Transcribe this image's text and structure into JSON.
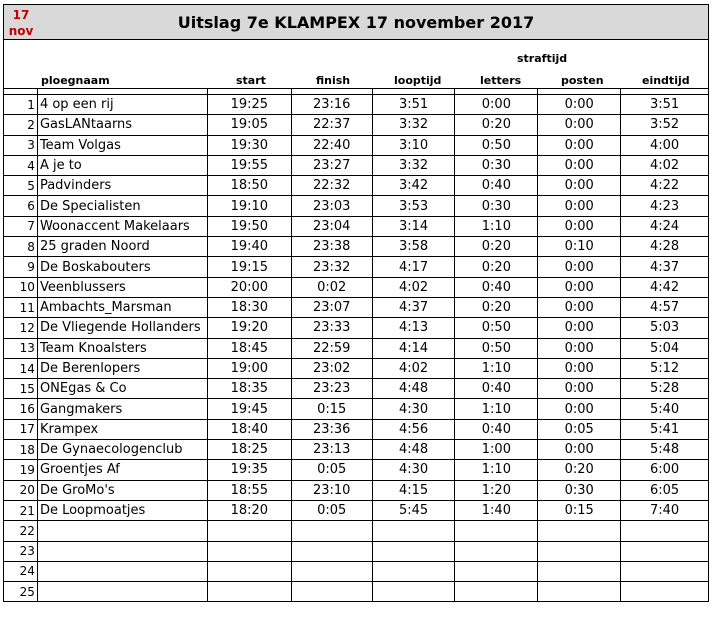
{
  "date_badge": {
    "day": "17",
    "month": "nov"
  },
  "title": "Uitslag 7e KLAMPEX  17 november 2017",
  "headers": {
    "team": "ploegnaam",
    "start": "start",
    "finish": "finish",
    "looptijd": "looptijd",
    "penalty_group": "straftijd",
    "letters": "letters",
    "posten": "posten",
    "eindtijd": "eindtijd"
  },
  "rows": [
    {
      "rank": "1",
      "team": "4 op een rij",
      "start": "19:25",
      "finish": "23:16",
      "looptijd": "3:51",
      "letters": "0:00",
      "posten": "0:00",
      "eindtijd": "3:51"
    },
    {
      "rank": "2",
      "team": "GasLANtaarns",
      "start": "19:05",
      "finish": "22:37",
      "looptijd": "3:32",
      "letters": "0:20",
      "posten": "0:00",
      "eindtijd": "3:52"
    },
    {
      "rank": "3",
      "team": "Team Volgas",
      "start": "19:30",
      "finish": "22:40",
      "looptijd": "3:10",
      "letters": "0:50",
      "posten": "0:00",
      "eindtijd": "4:00"
    },
    {
      "rank": "4",
      "team": "A je to",
      "start": "19:55",
      "finish": "23:27",
      "looptijd": "3:32",
      "letters": "0:30",
      "posten": "0:00",
      "eindtijd": "4:02"
    },
    {
      "rank": "5",
      "team": "Padvinders",
      "start": "18:50",
      "finish": "22:32",
      "looptijd": "3:42",
      "letters": "0:40",
      "posten": "0:00",
      "eindtijd": "4:22"
    },
    {
      "rank": "6",
      "team": "De Specialisten",
      "start": "19:10",
      "finish": "23:03",
      "looptijd": "3:53",
      "letters": "0:30",
      "posten": "0:00",
      "eindtijd": "4:23"
    },
    {
      "rank": "7",
      "team": "Woonaccent Makelaars",
      "start": "19:50",
      "finish": "23:04",
      "looptijd": "3:14",
      "letters": "1:10",
      "posten": "0:00",
      "eindtijd": "4:24"
    },
    {
      "rank": "8",
      "team": "25 graden Noord",
      "start": "19:40",
      "finish": "23:38",
      "looptijd": "3:58",
      "letters": "0:20",
      "posten": "0:10",
      "eindtijd": "4:28"
    },
    {
      "rank": "9",
      "team": "De Boskabouters",
      "start": "19:15",
      "finish": "23:32",
      "looptijd": "4:17",
      "letters": "0:20",
      "posten": "0:00",
      "eindtijd": "4:37"
    },
    {
      "rank": "10",
      "team": "Veenblussers",
      "start": "20:00",
      "finish": "0:02",
      "looptijd": "4:02",
      "letters": "0:40",
      "posten": "0:00",
      "eindtijd": "4:42"
    },
    {
      "rank": "11",
      "team": "Ambachts_Marsman",
      "start": "18:30",
      "finish": "23:07",
      "looptijd": "4:37",
      "letters": "0:20",
      "posten": "0:00",
      "eindtijd": "4:57"
    },
    {
      "rank": "12",
      "team": "De Vliegende Hollanders",
      "start": "19:20",
      "finish": "23:33",
      "looptijd": "4:13",
      "letters": "0:50",
      "posten": "0:00",
      "eindtijd": "5:03"
    },
    {
      "rank": "13",
      "team": "Team Knoalsters",
      "start": "18:45",
      "finish": "22:59",
      "looptijd": "4:14",
      "letters": "0:50",
      "posten": "0:00",
      "eindtijd": "5:04"
    },
    {
      "rank": "14",
      "team": "De Berenlopers",
      "start": "19:00",
      "finish": "23:02",
      "looptijd": "4:02",
      "letters": "1:10",
      "posten": "0:00",
      "eindtijd": "5:12"
    },
    {
      "rank": "15",
      "team": "ONEgas & Co",
      "start": "18:35",
      "finish": "23:23",
      "looptijd": "4:48",
      "letters": "0:40",
      "posten": "0:00",
      "eindtijd": "5:28"
    },
    {
      "rank": "16",
      "team": "Gangmakers",
      "start": "19:45",
      "finish": "0:15",
      "looptijd": "4:30",
      "letters": "1:10",
      "posten": "0:00",
      "eindtijd": "5:40"
    },
    {
      "rank": "17",
      "team": "Krampex",
      "start": "18:40",
      "finish": "23:36",
      "looptijd": "4:56",
      "letters": "0:40",
      "posten": "0:05",
      "eindtijd": "5:41"
    },
    {
      "rank": "18",
      "team": "De Gynaecologenclub",
      "start": "18:25",
      "finish": "23:13",
      "looptijd": "4:48",
      "letters": "1:00",
      "posten": "0:00",
      "eindtijd": "5:48"
    },
    {
      "rank": "19",
      "team": "Groentjes Af",
      "start": "19:35",
      "finish": "0:05",
      "looptijd": "4:30",
      "letters": "1:10",
      "posten": "0:20",
      "eindtijd": "6:00"
    },
    {
      "rank": "20",
      "team": "De GroMo's",
      "start": "18:55",
      "finish": "23:10",
      "looptijd": "4:15",
      "letters": "1:20",
      "posten": "0:30",
      "eindtijd": "6:05"
    },
    {
      "rank": "21",
      "team": "De Loopmoatjes",
      "start": "18:20",
      "finish": "0:05",
      "looptijd": "5:45",
      "letters": "1:40",
      "posten": "0:15",
      "eindtijd": "7:40"
    },
    {
      "rank": "22",
      "team": "",
      "start": "",
      "finish": "",
      "looptijd": "",
      "letters": "",
      "posten": "",
      "eindtijd": ""
    },
    {
      "rank": "23",
      "team": "",
      "start": "",
      "finish": "",
      "looptijd": "",
      "letters": "",
      "posten": "",
      "eindtijd": ""
    },
    {
      "rank": "24",
      "team": "",
      "start": "",
      "finish": "",
      "looptijd": "",
      "letters": "",
      "posten": "",
      "eindtijd": ""
    },
    {
      "rank": "25",
      "team": "",
      "start": "",
      "finish": "",
      "looptijd": "",
      "letters": "",
      "posten": "",
      "eindtijd": ""
    }
  ]
}
